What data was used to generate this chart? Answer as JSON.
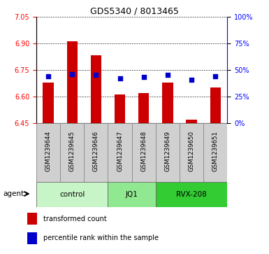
{
  "title": "GDS5340 / 8013465",
  "samples": [
    "GSM1239644",
    "GSM1239645",
    "GSM1239646",
    "GSM1239647",
    "GSM1239648",
    "GSM1239649",
    "GSM1239650",
    "GSM1239651"
  ],
  "transformed_count": [
    6.68,
    6.91,
    6.83,
    6.61,
    6.62,
    6.68,
    6.47,
    6.65
  ],
  "percentile_rank": [
    44,
    46,
    45,
    42,
    43,
    45,
    41,
    44
  ],
  "ymin": 6.45,
  "ymax": 7.05,
  "yticks": [
    6.45,
    6.6,
    6.75,
    6.9,
    7.05
  ],
  "right_yticks": [
    0,
    25,
    50,
    75,
    100
  ],
  "groups": [
    {
      "label": "control",
      "start": 0,
      "end": 3,
      "color": "#c8f5c8"
    },
    {
      "label": "JQ1",
      "start": 3,
      "end": 5,
      "color": "#90e890"
    },
    {
      "label": "RVX-208",
      "start": 5,
      "end": 8,
      "color": "#33cc33"
    }
  ],
  "bar_color": "#cc0000",
  "dot_color": "#0000cc",
  "bar_width": 0.45,
  "legend_transformed": "transformed count",
  "legend_percentile": "percentile rank within the sample"
}
